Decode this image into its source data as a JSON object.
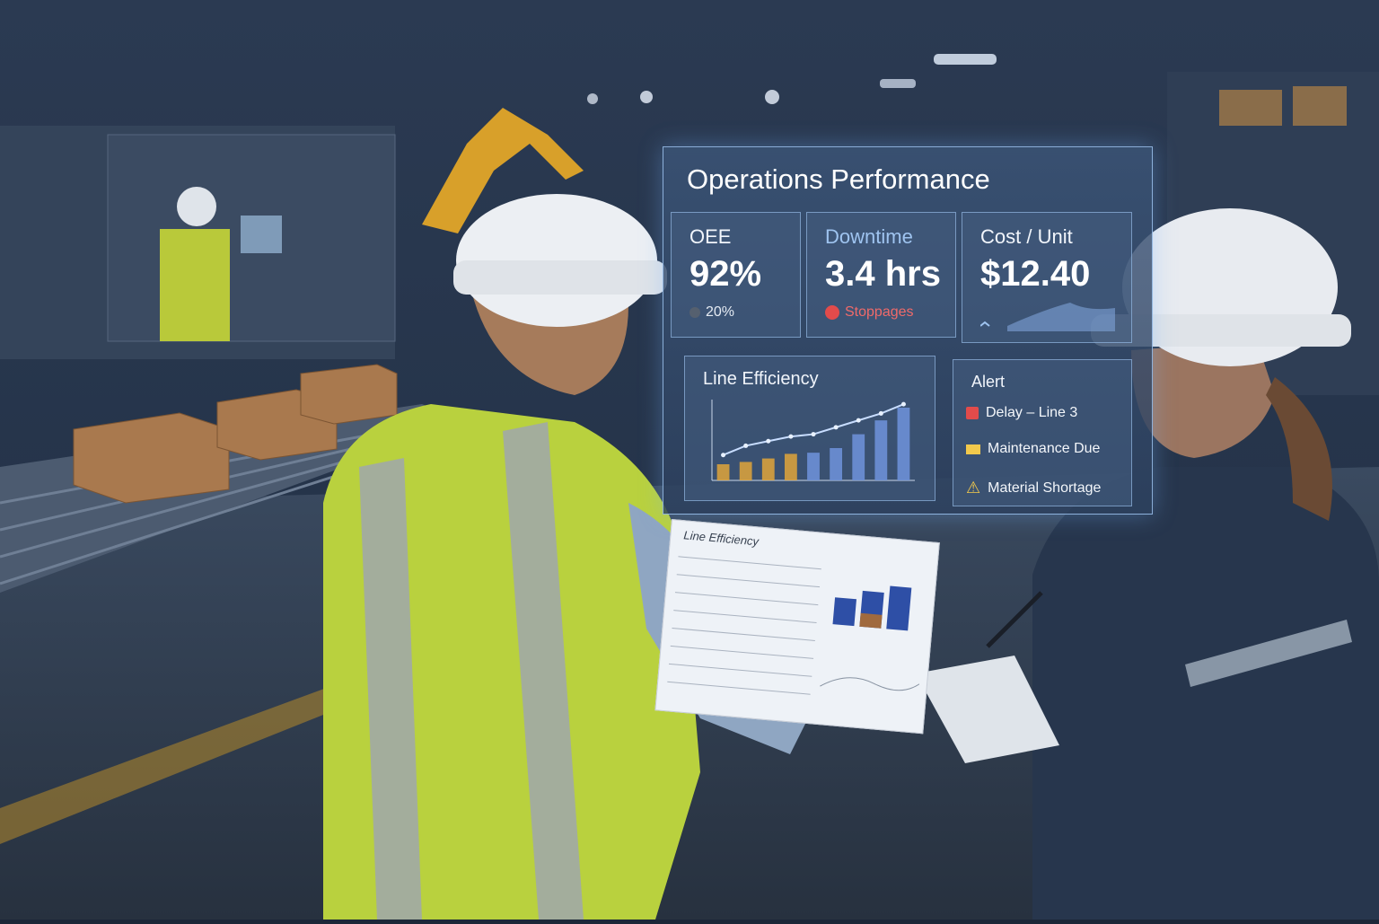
{
  "dashboard": {
    "title": "Operations Performance",
    "kpis": [
      {
        "label": "OEE",
        "value": "92%",
        "sub": "20%",
        "sub_icon": "dot-icon"
      },
      {
        "label": "Downtime",
        "value": "3.4 hrs",
        "sub": "Stoppages",
        "sub_color": "#e24b4b"
      },
      {
        "label": "Cost / Unit",
        "value": "$12.40"
      }
    ],
    "line_efficiency": {
      "title": "Line Efficiency"
    },
    "alerts": {
      "title": "Alert",
      "items": [
        {
          "label": "Delay – Line 3",
          "icon": "flag-icon",
          "color": "#e24b4b"
        },
        {
          "label": "Maintenance Due",
          "icon": "envelope-icon",
          "color": "#f2c94c"
        },
        {
          "label": "Material Shortage",
          "icon": "warning-icon",
          "color": "#f2c94c"
        }
      ]
    }
  },
  "paper_report": {
    "title": "Line Efficiency"
  },
  "chart_data": {
    "type": "bar",
    "title": "Line Efficiency",
    "values": [
      14,
      16,
      19,
      23,
      24,
      28,
      40,
      52,
      63
    ],
    "line_values": [
      22,
      30,
      34,
      38,
      40,
      46,
      52,
      58,
      66
    ],
    "ylim": [
      0,
      70
    ],
    "colors": {
      "bars": "#6d8fd6",
      "highlight": "#e0a43a",
      "line": "#c8ddff"
    }
  }
}
